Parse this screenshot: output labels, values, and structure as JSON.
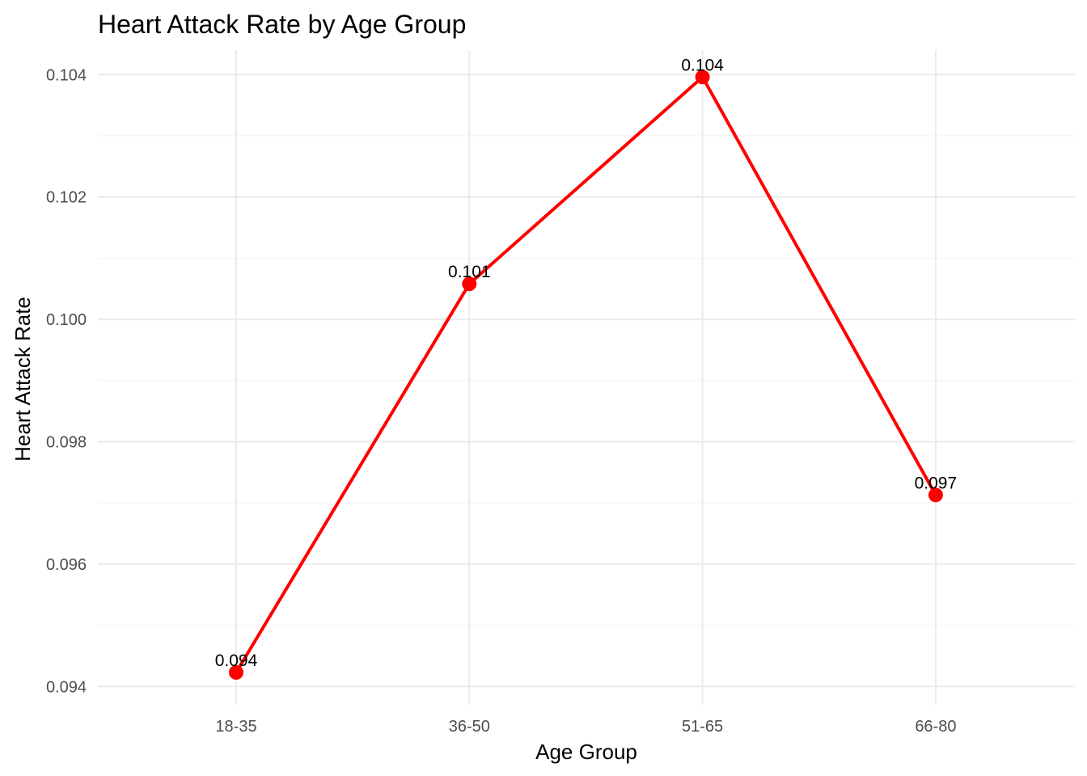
{
  "chart_data": {
    "type": "line",
    "title": "Heart Attack Rate by Age Group",
    "xlabel": "Age Group",
    "ylabel": "Heart Attack Rate",
    "categories": [
      "18-35",
      "36-50",
      "51-65",
      "66-80"
    ],
    "values": [
      0.09423,
      0.10058,
      0.10396,
      0.09713
    ],
    "data_labels": [
      "0.094",
      "0.101",
      "0.104",
      "0.097"
    ],
    "ylim": [
      0.0937,
      0.1044
    ],
    "yticks": [
      0.094,
      0.096,
      0.098,
      0.1,
      0.102,
      0.104
    ],
    "ytick_labels": [
      "0.094",
      "0.096",
      "0.098",
      "0.100",
      "0.102",
      "0.104"
    ],
    "grid": true,
    "legend": "none",
    "series_color": "#ff0000",
    "point_color": "#ff0000"
  }
}
